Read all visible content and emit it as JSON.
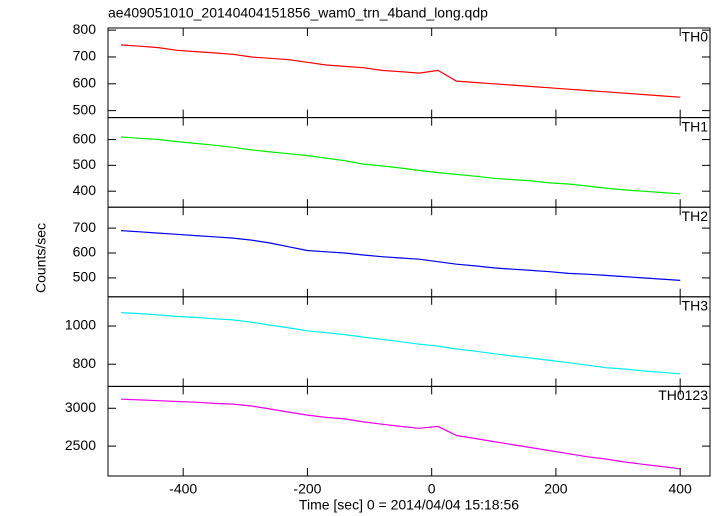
{
  "chart_data": [
    {
      "type": "line",
      "title": "ae409051010_20140404151856_wam0_trn_4band_long.qdp",
      "ylabel": "Counts/sec",
      "label": "TH0",
      "color": "#ff0000",
      "x": [
        -500,
        -470,
        -440,
        -410,
        -380,
        -350,
        -320,
        -290,
        -260,
        -230,
        -200,
        -170,
        -140,
        -110,
        -80,
        -50,
        -20,
        10,
        40,
        70,
        100,
        130,
        160,
        190,
        220,
        250,
        280,
        310,
        340,
        370,
        400
      ],
      "values": [
        745,
        740,
        735,
        725,
        720,
        715,
        710,
        700,
        695,
        690,
        680,
        670,
        665,
        660,
        650,
        645,
        640,
        650,
        610,
        605,
        600,
        595,
        590,
        585,
        580,
        575,
        570,
        565,
        560,
        555,
        550
      ],
      "xlim": [
        -521,
        448
      ],
      "ylim": [
        474,
        808
      ],
      "yticks": [
        500,
        600,
        700,
        800
      ]
    },
    {
      "type": "line",
      "label": "TH1",
      "color": "#00ee00",
      "x": [
        -500,
        -470,
        -440,
        -410,
        -380,
        -350,
        -320,
        -290,
        -260,
        -230,
        -200,
        -170,
        -140,
        -110,
        -80,
        -50,
        -20,
        10,
        40,
        70,
        100,
        130,
        160,
        190,
        220,
        250,
        280,
        310,
        340,
        370,
        400
      ],
      "values": [
        610,
        605,
        600,
        592,
        585,
        578,
        570,
        560,
        552,
        545,
        538,
        528,
        518,
        505,
        498,
        490,
        480,
        472,
        465,
        458,
        450,
        445,
        440,
        432,
        428,
        420,
        412,
        405,
        400,
        395,
        390
      ],
      "xlim": [
        -521,
        448
      ],
      "ylim": [
        338,
        685
      ],
      "yticks": [
        400,
        500,
        600
      ]
    },
    {
      "type": "line",
      "label": "TH2",
      "color": "#0000ee",
      "x": [
        -500,
        -470,
        -440,
        -410,
        -380,
        -350,
        -320,
        -290,
        -260,
        -230,
        -200,
        -170,
        -140,
        -110,
        -80,
        -50,
        -20,
        10,
        40,
        70,
        100,
        130,
        160,
        190,
        220,
        250,
        280,
        310,
        340,
        370,
        400
      ],
      "values": [
        690,
        685,
        680,
        675,
        670,
        665,
        660,
        652,
        640,
        625,
        610,
        605,
        600,
        592,
        585,
        580,
        575,
        565,
        555,
        548,
        540,
        535,
        530,
        525,
        518,
        515,
        510,
        505,
        500,
        495,
        490
      ],
      "xlim": [
        -521,
        448
      ],
      "ylim": [
        424,
        784
      ],
      "yticks": [
        500,
        600,
        700
      ]
    },
    {
      "type": "line",
      "label": "TH3",
      "color": "#00eeee",
      "x": [
        -500,
        -470,
        -440,
        -410,
        -380,
        -350,
        -320,
        -290,
        -260,
        -230,
        -200,
        -170,
        -140,
        -110,
        -80,
        -50,
        -20,
        10,
        40,
        70,
        100,
        130,
        160,
        190,
        220,
        250,
        280,
        310,
        340,
        370,
        400
      ],
      "values": [
        1070,
        1065,
        1058,
        1050,
        1045,
        1038,
        1032,
        1020,
        1005,
        990,
        975,
        965,
        955,
        942,
        930,
        918,
        905,
        895,
        880,
        868,
        855,
        843,
        832,
        820,
        808,
        795,
        782,
        775,
        765,
        758,
        750
      ],
      "xlim": [
        -521,
        448
      ],
      "ylim": [
        684,
        1153
      ],
      "yticks": [
        800,
        1000
      ]
    },
    {
      "type": "line",
      "label": "TH0123",
      "color": "#ee00ee",
      "xlabel": "Time [sec] 0 = 2014/04/04 15:18:56",
      "x": [
        -500,
        -470,
        -440,
        -410,
        -380,
        -350,
        -320,
        -290,
        -260,
        -230,
        -200,
        -170,
        -140,
        -110,
        -80,
        -50,
        -20,
        10,
        40,
        70,
        100,
        130,
        160,
        190,
        220,
        250,
        280,
        310,
        340,
        370,
        400
      ],
      "values": [
        3120,
        3110,
        3100,
        3090,
        3080,
        3065,
        3055,
        3030,
        2990,
        2950,
        2910,
        2880,
        2860,
        2820,
        2790,
        2760,
        2735,
        2760,
        2640,
        2600,
        2560,
        2520,
        2480,
        2440,
        2400,
        2360,
        2330,
        2290,
        2260,
        2230,
        2200
      ],
      "xlim": [
        -521,
        448
      ],
      "ylim": [
        2105,
        3289
      ],
      "yticks": [
        2500,
        3000
      ],
      "xticks": [
        -400,
        -200,
        0,
        200,
        400
      ]
    }
  ]
}
